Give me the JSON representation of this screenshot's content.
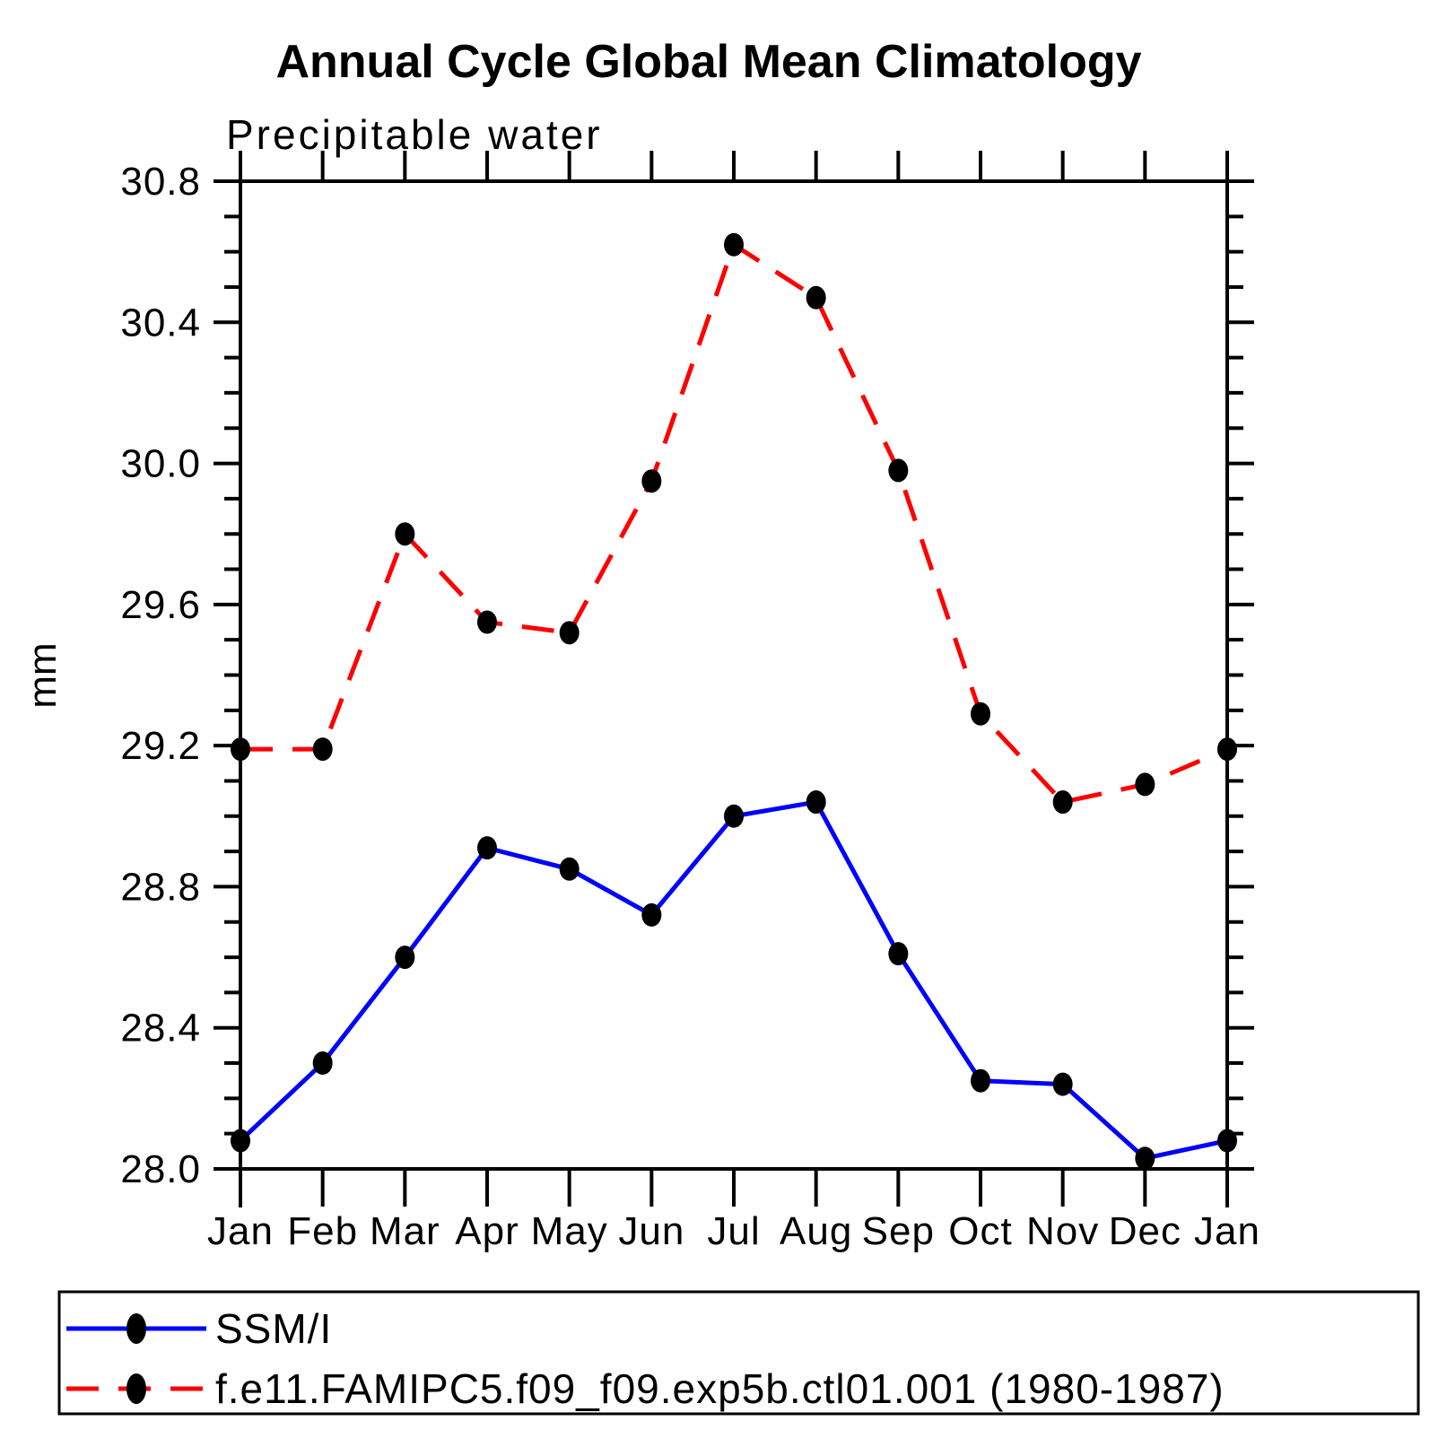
{
  "title": "Annual Cycle Global Mean Climatology",
  "subtitle": "Precipitable water",
  "chart_data": {
    "type": "line",
    "categories": [
      "Jan",
      "Feb",
      "Mar",
      "Apr",
      "May",
      "Jun",
      "Jul",
      "Aug",
      "Sep",
      "Oct",
      "Nov",
      "Dec",
      "Jan"
    ],
    "xlabel": "",
    "ylabel": "mm",
    "ylim": [
      28.0,
      30.8
    ],
    "ytick_major_step": 0.4,
    "ytick_minor_step": 0.1,
    "ytick_labels": [
      "28.0",
      "28.4",
      "28.8",
      "29.2",
      "29.6",
      "30.0",
      "30.4",
      "30.8"
    ],
    "grid": false,
    "legend_position": "bottom",
    "series": [
      {
        "name": "SSM/I",
        "color": "#0000ff",
        "line_style": "solid",
        "marker": "filled-circle",
        "marker_color": "#000000",
        "values": [
          28.08,
          28.3,
          28.6,
          28.91,
          28.85,
          28.72,
          29.0,
          29.04,
          28.61,
          28.25,
          28.24,
          28.03,
          28.08
        ]
      },
      {
        "name": "f.e11.FAMIPC5.f09_f09.exp5b.ctl01.001 (1980-1987)",
        "color": "#ff0000",
        "line_style": "dashed",
        "marker": "filled-circle",
        "marker_color": "#000000",
        "values": [
          29.19,
          29.19,
          29.8,
          29.55,
          29.52,
          29.95,
          30.62,
          30.47,
          29.98,
          29.29,
          29.04,
          29.09,
          29.19
        ]
      }
    ]
  },
  "colors": {
    "background": "#ffffff",
    "axis": "#000000",
    "text": "#000000",
    "ssmi_line": "#0000ff",
    "model_line": "#ff0000",
    "marker": "#000000"
  }
}
